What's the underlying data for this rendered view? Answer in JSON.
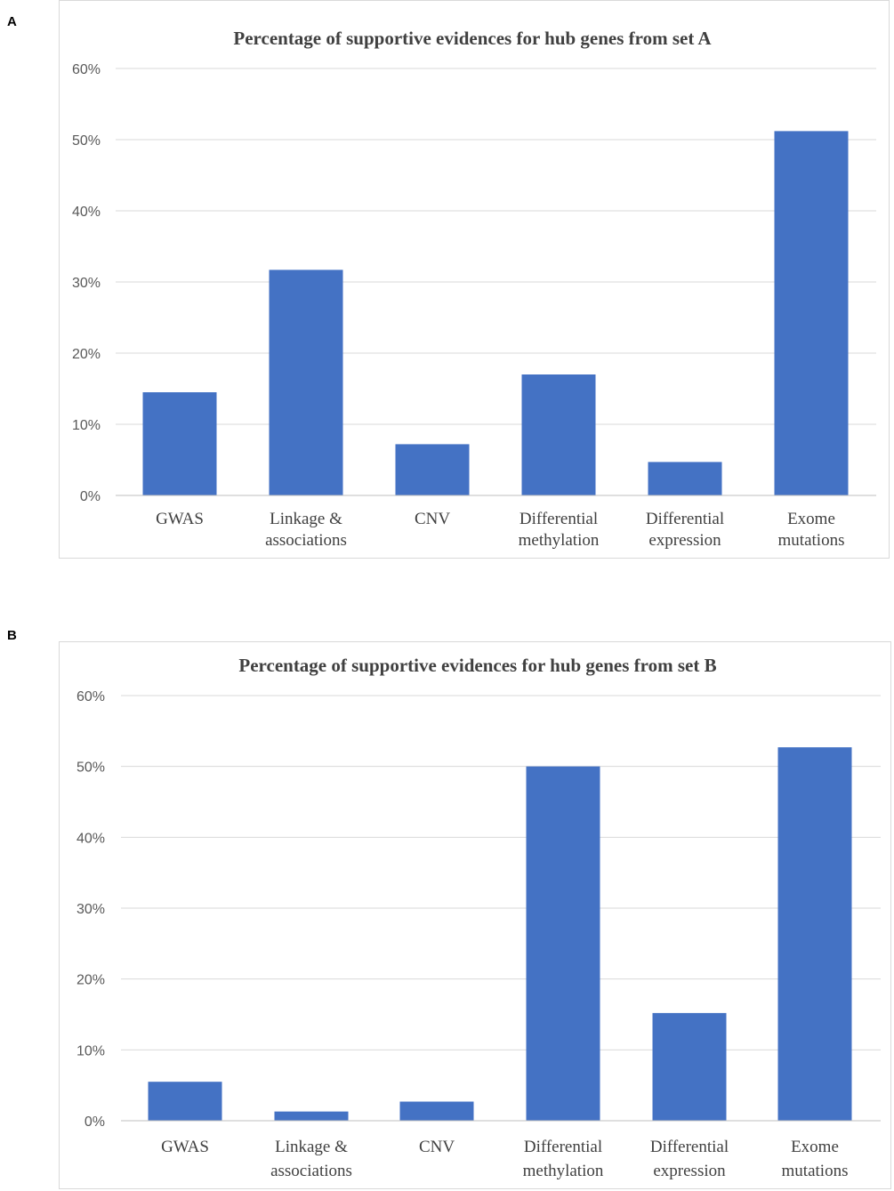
{
  "panels": [
    {
      "letter": "A"
    },
    {
      "letter": "B"
    }
  ],
  "chart_data": [
    {
      "type": "bar",
      "title": "Percentage of supportive evidences for hub genes from set A",
      "categories": [
        [
          "GWAS"
        ],
        [
          "Linkage &",
          "associations"
        ],
        [
          "CNV"
        ],
        [
          "Differential",
          "methylation"
        ],
        [
          "Differential",
          "expression"
        ],
        [
          "Exome",
          "mutations"
        ]
      ],
      "values": [
        14.5,
        31.7,
        7.2,
        17.0,
        4.7,
        51.2
      ],
      "ylim": [
        0,
        60
      ],
      "yticks": [
        "0%",
        "10%",
        "20%",
        "30%",
        "40%",
        "50%",
        "60%"
      ],
      "bar_color": "#4472c4",
      "grid": true
    },
    {
      "type": "bar",
      "title": "Percentage of supportive evidences for hub genes from set B",
      "categories": [
        [
          "GWAS"
        ],
        [
          "Linkage &",
          "associations"
        ],
        [
          "CNV"
        ],
        [
          "Differential",
          "methylation"
        ],
        [
          "Differential",
          "expression"
        ],
        [
          "Exome",
          "mutations"
        ]
      ],
      "values": [
        5.5,
        1.3,
        2.7,
        50.0,
        15.2,
        52.7
      ],
      "ylim": [
        0,
        60
      ],
      "yticks": [
        "0%",
        "10%",
        "20%",
        "30%",
        "40%",
        "50%",
        "60%"
      ],
      "bar_color": "#4472c4",
      "grid": true
    }
  ]
}
